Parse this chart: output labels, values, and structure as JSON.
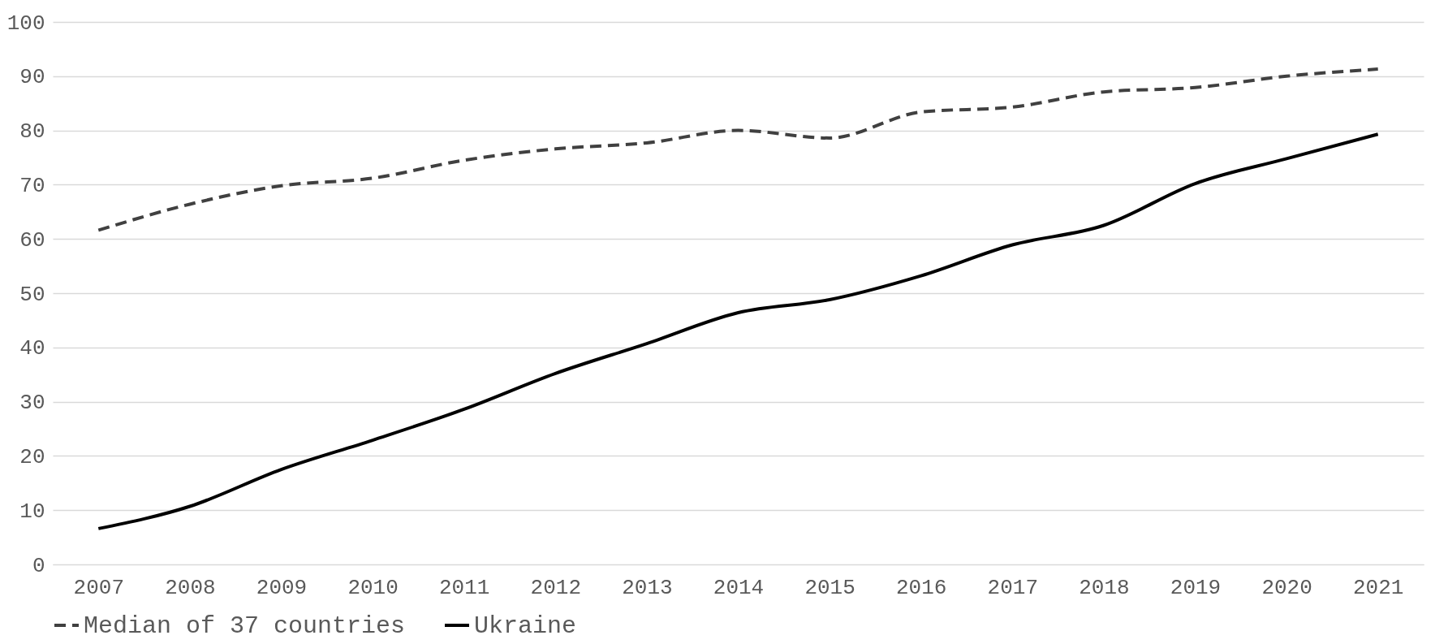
{
  "chart_data": {
    "type": "line",
    "categories": [
      "2007",
      "2008",
      "2009",
      "2010",
      "2011",
      "2012",
      "2013",
      "2014",
      "2015",
      "2016",
      "2017",
      "2018",
      "2019",
      "2020",
      "2021"
    ],
    "series": [
      {
        "name": "Median of 37 countries",
        "color": "#404040",
        "line_style": "dashed",
        "values": [
          61.6,
          66.4,
          69.8,
          71.2,
          74.5,
          76.6,
          77.7,
          80.0,
          78.6,
          83.4,
          84.3,
          87.1,
          87.9,
          90.0,
          91.3
        ]
      },
      {
        "name": "Ukraine",
        "color": "#000000",
        "line_style": "solid",
        "values": [
          6.6,
          10.7,
          17.5,
          22.9,
          28.6,
          35.2,
          40.7,
          46.4,
          48.8,
          53.2,
          58.9,
          62.5,
          70.2,
          74.8,
          79.3
        ]
      }
    ],
    "ylim": [
      0,
      100
    ],
    "yticks": [
      0,
      10,
      20,
      30,
      40,
      50,
      60,
      70,
      80,
      90,
      100
    ],
    "grid": "y",
    "legend": "bottom"
  }
}
